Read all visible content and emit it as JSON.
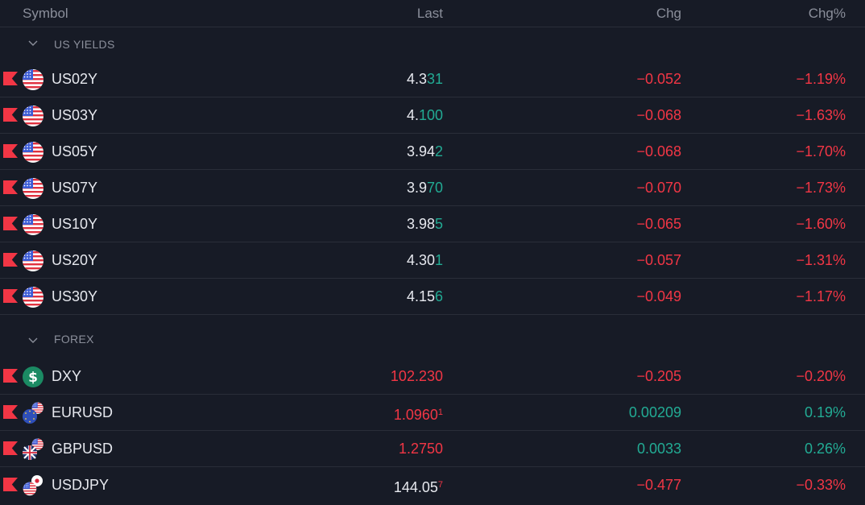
{
  "header": {
    "symbol": "Symbol",
    "last": "Last",
    "chg": "Chg",
    "chgp": "Chg%"
  },
  "sections": [
    {
      "title": "US YIELDS",
      "rows": [
        {
          "symbol": "US02Y",
          "last_a": "4.3",
          "last_b": "31",
          "chg": "−0.052",
          "chgp": "−1.19%"
        },
        {
          "symbol": "US03Y",
          "last_a": "4.",
          "last_b": "100",
          "chg": "−0.068",
          "chgp": "−1.63%"
        },
        {
          "symbol": "US05Y",
          "last_a": "3.94",
          "last_b": "2",
          "chg": "−0.068",
          "chgp": "−1.70%"
        },
        {
          "symbol": "US07Y",
          "last_a": "3.9",
          "last_b": "70",
          "chg": "−0.070",
          "chgp": "−1.73%"
        },
        {
          "symbol": "US10Y",
          "last_a": "3.98",
          "last_b": "5",
          "chg": "−0.065",
          "chgp": "−1.60%"
        },
        {
          "symbol": "US20Y",
          "last_a": "4.30",
          "last_b": "1",
          "chg": "−0.057",
          "chgp": "−1.31%"
        },
        {
          "symbol": "US30Y",
          "last_a": "4.15",
          "last_b": "6",
          "chg": "−0.049",
          "chgp": "−1.17%"
        }
      ]
    },
    {
      "title": "FOREX",
      "rows": [
        {
          "symbol": "DXY",
          "last": "102.230",
          "chg": "−0.205",
          "chgp": "−0.20%"
        },
        {
          "symbol": "EURUSD",
          "last": "1.0960",
          "last_sup": "1",
          "chg": "0.00209",
          "chgp": "0.19%"
        },
        {
          "symbol": "GBPUSD",
          "last": "1.2750",
          "chg": "0.0033",
          "chgp": "0.26%"
        },
        {
          "symbol": "USDJPY",
          "last_a": "144.05",
          "last_sup": "7",
          "chg": "−0.477",
          "chgp": "−0.33%"
        }
      ]
    }
  ],
  "colors": {
    "red": "#f23645",
    "green": "#22ab94",
    "bg": "#171b26"
  },
  "icons": [
    "us-flag-icon",
    "dollar-icon",
    "eu-us-flag-icon",
    "gb-us-flag-icon",
    "us-jp-flag-icon"
  ]
}
